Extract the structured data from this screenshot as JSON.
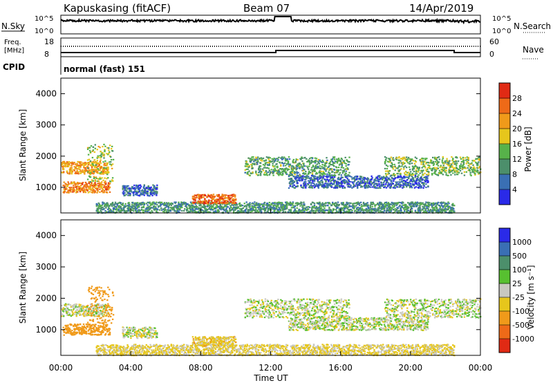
{
  "header": {
    "station": "Kapuskasing (fitACF)",
    "beam": "Beam 07",
    "date": "14/Apr/2019"
  },
  "strips": {
    "nsky_label": "N.Sky",
    "nsearch_label": "N.Search",
    "noise_ticks": [
      "10^5",
      "10^0"
    ],
    "noise_ticks_right": [
      "10^5",
      "10^0"
    ],
    "freq_label_top": "Freq.",
    "freq_label_unit": "[MHz]",
    "freq_ticks": [
      "18",
      "8"
    ],
    "nave_label": "Nave",
    "nave_ticks": [
      "60",
      "0"
    ],
    "cpid_label": "CPID",
    "cpid_text": "normal (fast) 151"
  },
  "panels": {
    "power": {
      "ylabel": "Slant Range [km]",
      "yticks": [
        "4000",
        "3000",
        "2000",
        "1000"
      ],
      "colorbar_label": "Power [dB]",
      "colorbar_ticks": [
        "28",
        "24",
        "20",
        "16",
        "12",
        "8",
        "4"
      ],
      "colors": [
        "#2a2ae8",
        "#3a6fb4",
        "#4c8f6b",
        "#57b24a",
        "#e6c61c",
        "#f09a1a",
        "#ee6a18",
        "#e02a14"
      ]
    },
    "velocity": {
      "ylabel": "Slant Range [km]",
      "yticks": [
        "4000",
        "3000",
        "2000",
        "1000"
      ],
      "colorbar_label": "Velocity [m s⁻¹]",
      "colorbar_ticks": [
        "1000",
        "500",
        "100",
        "25",
        "-25",
        "-100",
        "-500",
        "-1000"
      ],
      "colors": [
        "#2a2ae8",
        "#3a6fb4",
        "#4c8f6b",
        "#57c030",
        "#c8c8c0",
        "#e6c61c",
        "#f09a1a",
        "#ee6a18",
        "#e02a14"
      ]
    }
  },
  "xaxis": {
    "ticks": [
      "00:00",
      "04:00",
      "08:00",
      "12:00",
      "16:00",
      "20:00",
      "00:00"
    ],
    "label": "Time UT"
  },
  "chart_data": {
    "type": "heatmap",
    "title": "Kapuskasing (fitACF) Beam 07 14/Apr/2019",
    "xlabel": "Time UT",
    "ylabel": "Slant Range [km]",
    "x_range_hours": [
      0,
      24
    ],
    "y_range_km": [
      180,
      4500
    ],
    "power_range_db": [
      0,
      32
    ],
    "velocity_range_ms": [
      -1200,
      1200
    ],
    "features": [
      {
        "name": "near range ground band",
        "t": [
          2.0,
          22.5
        ],
        "r": [
          200,
          550
        ],
        "power_db": 10,
        "velocity_ms": -40
      },
      {
        "name": "early band A",
        "t": [
          0.0,
          2.7
        ],
        "r": [
          1450,
          1850
        ],
        "power_db": 22,
        "velocity_ms": 0
      },
      {
        "name": "early band B",
        "t": [
          0.1,
          2.8
        ],
        "r": [
          850,
          1200
        ],
        "power_db": 24,
        "velocity_ms": -300
      },
      {
        "name": "early slant",
        "t": [
          1.5,
          3.0
        ],
        "r": [
          1200,
          2400
        ],
        "power_db": 16,
        "velocity_ms": -200
      },
      {
        "name": "morning echo",
        "t": [
          3.5,
          5.5
        ],
        "r": [
          750,
          1100
        ],
        "power_db": 6,
        "velocity_ms": 0
      },
      {
        "name": "mid-day patch",
        "t": [
          7.5,
          10.0
        ],
        "r": [
          500,
          800
        ],
        "power_db": 26,
        "velocity_ms": -60
      },
      {
        "name": "afternoon band",
        "t": [
          10.5,
          16.5
        ],
        "r": [
          1400,
          2000
        ],
        "power_db": 12,
        "velocity_ms": 5
      },
      {
        "name": "evening band",
        "t": [
          18.5,
          24.0
        ],
        "r": [
          1400,
          2000
        ],
        "power_db": 14,
        "velocity_ms": 5
      },
      {
        "name": "afternoon lower band",
        "t": [
          13.0,
          21.0
        ],
        "r": [
          1000,
          1400
        ],
        "power_db": 6,
        "velocity_ms": 5
      }
    ]
  }
}
